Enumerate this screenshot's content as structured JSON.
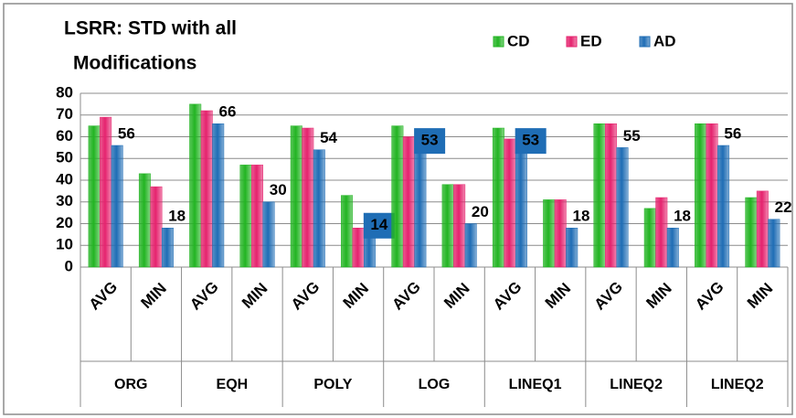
{
  "chart_data": {
    "type": "bar",
    "title": [
      "LSRR: STD with all",
      "Modifications"
    ],
    "categories": [
      "AVG",
      "MIN",
      "AVG",
      "MIN",
      "AVG",
      "MIN",
      "AVG",
      "MIN",
      "AVG",
      "MIN",
      "AVG",
      "MIN",
      "AVG",
      "MIN"
    ],
    "groups": [
      "ORG",
      "EQH",
      "POLY",
      "LOG",
      "LINEQ1",
      "LINEQ2",
      "LINEQ2"
    ],
    "series": [
      {
        "name": "CD",
        "color": "#22b422",
        "values": [
          65,
          43,
          75,
          47,
          65,
          33,
          65,
          38,
          64,
          31,
          66,
          27,
          66,
          32
        ]
      },
      {
        "name": "ED",
        "color": "#e5236e",
        "values": [
          69,
          37,
          72,
          47,
          64,
          18,
          60,
          38,
          59,
          31,
          66,
          32,
          66,
          35
        ]
      },
      {
        "name": "AD",
        "color": "#1f6db5",
        "values": [
          56,
          18,
          66,
          30,
          54,
          14,
          53,
          20,
          53,
          18,
          55,
          18,
          56,
          22
        ],
        "data_labels": true
      }
    ],
    "ylim": [
      0,
      80
    ],
    "yticks": [
      0,
      10,
      20,
      30,
      40,
      50,
      60,
      70,
      80
    ],
    "grid": true,
    "legend": "top"
  }
}
